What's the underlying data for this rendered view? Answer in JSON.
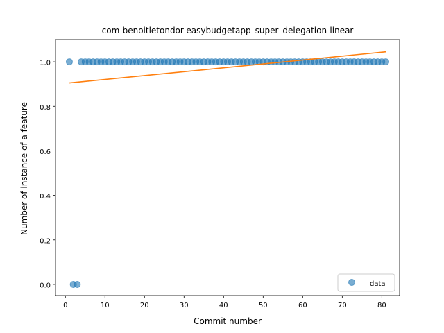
{
  "chart_data": {
    "type": "scatter",
    "title": "com-benoitletondor-easybudgetapp_super_delegation-linear",
    "xlabel": "Commit number",
    "ylabel": "Number of instance of a feature",
    "xlim": [
      -2.5,
      84.5
    ],
    "ylim": [
      -0.05,
      1.1
    ],
    "xticks": [
      0,
      10,
      20,
      30,
      40,
      50,
      60,
      70,
      80
    ],
    "yticks": [
      0.0,
      0.2,
      0.4,
      0.6,
      0.8,
      1.0
    ],
    "xtick_labels": [
      "0",
      "10",
      "20",
      "30",
      "40",
      "50",
      "60",
      "70",
      "80"
    ],
    "ytick_labels": [
      "0.0",
      "0.2",
      "0.4",
      "0.6",
      "0.8",
      "1.0"
    ],
    "grid": false,
    "legend_position": "lower-right",
    "series": [
      {
        "name": "data",
        "kind": "scatter",
        "color": "#1f77b4",
        "x": [
          1,
          2,
          3,
          4,
          5,
          6,
          7,
          8,
          9,
          10,
          11,
          12,
          13,
          14,
          15,
          16,
          17,
          18,
          19,
          20,
          21,
          22,
          23,
          24,
          25,
          26,
          27,
          28,
          29,
          30,
          31,
          32,
          33,
          34,
          35,
          36,
          37,
          38,
          39,
          40,
          41,
          42,
          43,
          44,
          45,
          46,
          47,
          48,
          49,
          50,
          51,
          52,
          53,
          54,
          55,
          56,
          57,
          58,
          59,
          60,
          61,
          62,
          63,
          64,
          65,
          66,
          67,
          68,
          69,
          70,
          71,
          72,
          73,
          74,
          75,
          76,
          77,
          78,
          79,
          80,
          81
        ],
        "y": [
          1,
          0,
          0,
          1,
          1,
          1,
          1,
          1,
          1,
          1,
          1,
          1,
          1,
          1,
          1,
          1,
          1,
          1,
          1,
          1,
          1,
          1,
          1,
          1,
          1,
          1,
          1,
          1,
          1,
          1,
          1,
          1,
          1,
          1,
          1,
          1,
          1,
          1,
          1,
          1,
          1,
          1,
          1,
          1,
          1,
          1,
          1,
          1,
          1,
          1,
          1,
          1,
          1,
          1,
          1,
          1,
          1,
          1,
          1,
          1,
          1,
          1,
          1,
          1,
          1,
          1,
          1,
          1,
          1,
          1,
          1,
          1,
          1,
          1,
          1,
          1,
          1,
          1,
          1,
          1,
          1
        ]
      },
      {
        "kind": "line",
        "color": "#ff7f0e",
        "x": [
          1,
          81
        ],
        "y": [
          0.905,
          1.045
        ]
      }
    ]
  }
}
